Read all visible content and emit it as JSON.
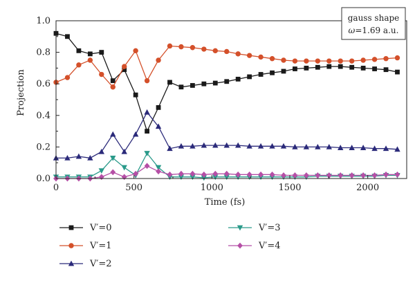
{
  "chart_data": {
    "type": "line",
    "xlabel": "Time (fs)",
    "ylabel": "Projection",
    "xlim": [
      0,
      2250
    ],
    "ylim": [
      0,
      1.0
    ],
    "xticks": [
      0,
      500,
      1000,
      1500,
      2000
    ],
    "xtick_labels": [
      "0",
      "500",
      "1000",
      "1500",
      "2000"
    ],
    "yticks": [
      0,
      0.2,
      0.4,
      0.6,
      0.8,
      1.0
    ],
    "ytick_labels": [
      "0.0",
      "0.2",
      "0.4",
      "0.6",
      "0.8",
      "1.0"
    ],
    "annotation": {
      "line1": "gauss shape",
      "line2_symbol": "ω",
      "line2_rest": "=1.69 a.u."
    },
    "x": [
      0,
      73,
      146,
      219,
      292,
      365,
      438,
      511,
      584,
      657,
      730,
      803,
      876,
      949,
      1022,
      1095,
      1168,
      1241,
      1314,
      1387,
      1460,
      1533,
      1606,
      1679,
      1752,
      1825,
      1898,
      1971,
      2044,
      2117,
      2190
    ],
    "series": [
      {
        "name": "V′=0",
        "color": "#1a1a1a",
        "marker": "square",
        "values": [
          0.92,
          0.9,
          0.81,
          0.79,
          0.8,
          0.62,
          0.69,
          0.53,
          0.3,
          0.45,
          0.61,
          0.58,
          0.59,
          0.6,
          0.605,
          0.615,
          0.63,
          0.645,
          0.66,
          0.67,
          0.68,
          0.695,
          0.7,
          0.705,
          0.71,
          0.71,
          0.705,
          0.7,
          0.695,
          0.69,
          0.675
        ]
      },
      {
        "name": "V′=1",
        "color": "#d4502a",
        "marker": "circle",
        "values": [
          0.61,
          0.64,
          0.72,
          0.75,
          0.66,
          0.58,
          0.71,
          0.81,
          0.62,
          0.75,
          0.84,
          0.835,
          0.83,
          0.82,
          0.81,
          0.805,
          0.79,
          0.78,
          0.77,
          0.76,
          0.75,
          0.745,
          0.745,
          0.745,
          0.745,
          0.745,
          0.745,
          0.75,
          0.755,
          0.76,
          0.765
        ]
      },
      {
        "name": "V′=2",
        "color": "#2b2a7a",
        "marker": "triangle-up",
        "values": [
          0.13,
          0.13,
          0.14,
          0.13,
          0.17,
          0.28,
          0.17,
          0.28,
          0.42,
          0.33,
          0.19,
          0.205,
          0.205,
          0.21,
          0.21,
          0.21,
          0.21,
          0.205,
          0.205,
          0.205,
          0.205,
          0.2,
          0.2,
          0.2,
          0.2,
          0.195,
          0.195,
          0.195,
          0.19,
          0.19,
          0.185
        ]
      },
      {
        "name": "V′=3",
        "color": "#2a9a8a",
        "marker": "triangle-down",
        "values": [
          0.01,
          0.01,
          0.01,
          0.01,
          0.05,
          0.13,
          0.07,
          0.02,
          0.16,
          0.07,
          0.01,
          0.01,
          0.01,
          0.005,
          0.01,
          0.01,
          0.01,
          0.01,
          0.01,
          0.01,
          0.01,
          0.01,
          0.01,
          0.015,
          0.015,
          0.015,
          0.015,
          0.015,
          0.015,
          0.02,
          0.02
        ]
      },
      {
        "name": "V′=4",
        "color": "#b54fa6",
        "marker": "diamond",
        "values": [
          0.0,
          0.0,
          0.0,
          0.0,
          0.01,
          0.04,
          0.01,
          0.03,
          0.08,
          0.045,
          0.025,
          0.03,
          0.03,
          0.025,
          0.03,
          0.03,
          0.025,
          0.025,
          0.025,
          0.025,
          0.02,
          0.02,
          0.02,
          0.02,
          0.02,
          0.02,
          0.02,
          0.02,
          0.02,
          0.025,
          0.025
        ]
      }
    ],
    "legend": {
      "placement": "bottom",
      "columns": 2
    }
  }
}
